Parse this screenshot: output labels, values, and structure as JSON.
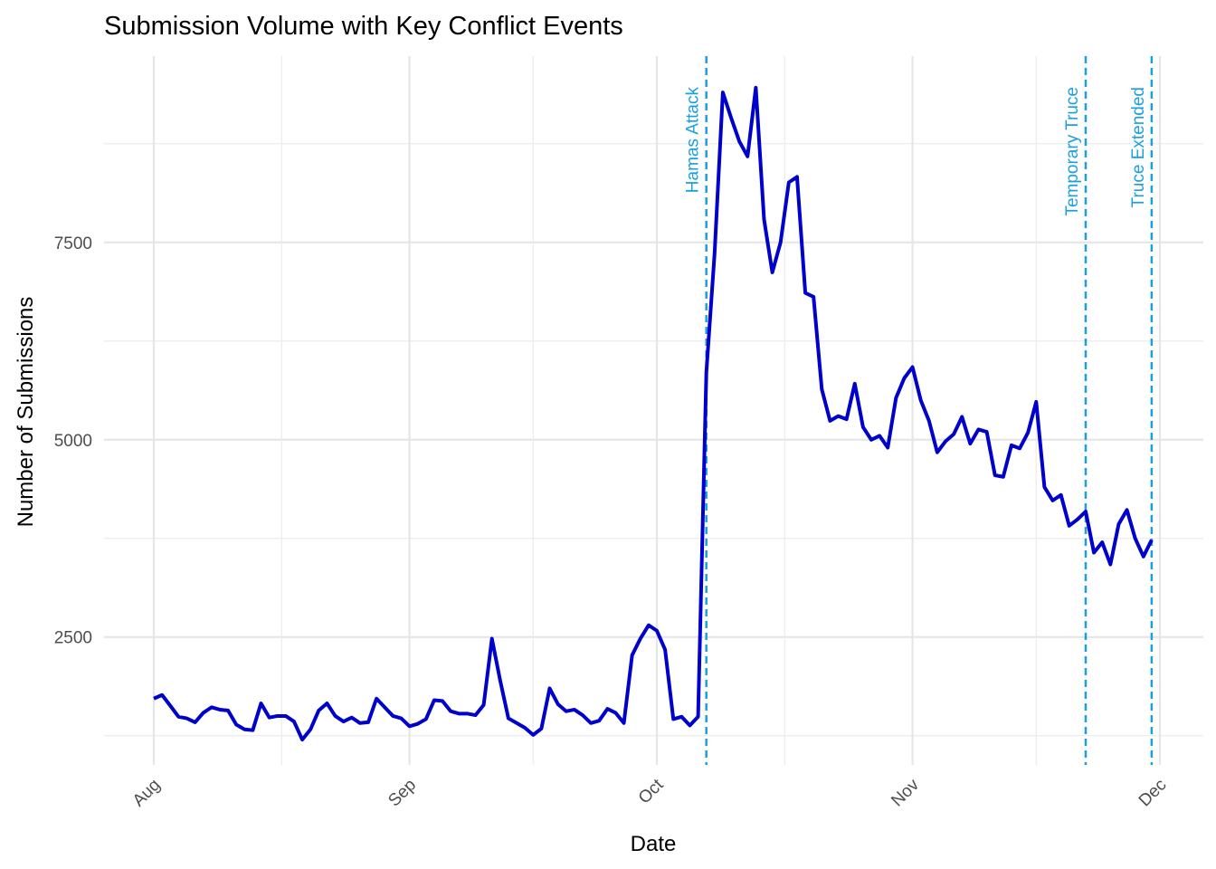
{
  "chart_data": {
    "type": "line",
    "title": "Submission Volume with Key Conflict Events",
    "x_label": "Date",
    "y_label": "Number of Submissions",
    "categories": [
      "Aug",
      null,
      null,
      null,
      null,
      null,
      null,
      null,
      null,
      null,
      null,
      null,
      null,
      null,
      null,
      null,
      null,
      null,
      null,
      null,
      null,
      null,
      null,
      null,
      null,
      null,
      null,
      null,
      null,
      null,
      null,
      "Sep",
      null,
      null,
      null,
      null,
      null,
      null,
      null,
      null,
      null,
      null,
      null,
      null,
      null,
      null,
      null,
      null,
      null,
      null,
      null,
      null,
      null,
      null,
      null,
      null,
      null,
      null,
      null,
      null,
      null,
      "Oct",
      null,
      null,
      null,
      null,
      null,
      null,
      null,
      null,
      null,
      null,
      null,
      null,
      null,
      null,
      null,
      null,
      null,
      null,
      null,
      null,
      null,
      null,
      null,
      null,
      null,
      null,
      null,
      null,
      null,
      null,
      "Nov",
      null,
      null,
      null,
      null,
      null,
      null,
      null,
      null,
      null,
      null,
      null,
      null,
      null,
      null,
      null,
      null,
      null,
      null,
      null,
      null,
      null,
      null,
      null,
      null,
      null,
      null,
      null,
      null,
      null,
      "Dec"
    ],
    "series": [
      {
        "name": "Submissions",
        "color": "#0000cc",
        "values": [
          1720,
          1766,
          1630,
          1490,
          1470,
          1420,
          1540,
          1610,
          1580,
          1570,
          1390,
          1330,
          1320,
          1660,
          1480,
          1500,
          1500,
          1430,
          1200,
          1330,
          1570,
          1660,
          1500,
          1430,
          1480,
          1410,
          1420,
          1720,
          1610,
          1500,
          1470,
          1370,
          1400,
          1460,
          1700,
          1690,
          1560,
          1530,
          1530,
          1510,
          1640,
          2480,
          1950,
          1470,
          1410,
          1350,
          1260,
          1340,
          1850,
          1650,
          1560,
          1580,
          1510,
          1410,
          1440,
          1590,
          1540,
          1410,
          2270,
          2480,
          2650,
          2580,
          2340,
          1460,
          1490,
          1380,
          1490,
          5850,
          7360,
          9400,
          9080,
          8780,
          8590,
          9460,
          7790,
          7120,
          7500,
          8260,
          8330,
          6860,
          6810,
          5640,
          5240,
          5300,
          5260,
          5710,
          5160,
          5000,
          5050,
          4900,
          5530,
          5780,
          5920,
          5500,
          5240,
          4840,
          4980,
          5070,
          5290,
          4950,
          5130,
          5100,
          4550,
          4530,
          4930,
          4890,
          5090,
          5480,
          4400,
          4230,
          4300,
          3910,
          3990,
          4090,
          3570,
          3700,
          3420,
          3930,
          4110,
          3750,
          3520,
          3730,
          null
        ]
      }
    ],
    "annotations": [
      {
        "label": "Hamas Attack",
        "index": 67,
        "color": "#1a9fe0"
      },
      {
        "label": "Temporary Truce",
        "index": 113,
        "color": "#1a9fe0"
      },
      {
        "label": "Truce Extended",
        "index": 121,
        "color": "#1a9fe0"
      }
    ],
    "ylim": [
      880,
      9860
    ],
    "yticks": [
      2500,
      5000,
      7500
    ],
    "grid": true
  }
}
